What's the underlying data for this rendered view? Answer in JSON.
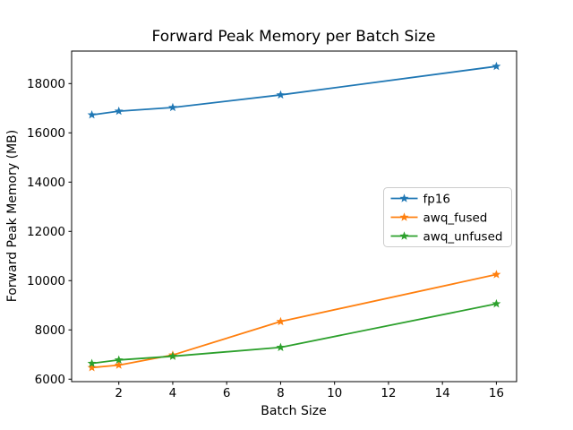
{
  "chart_data": {
    "type": "line",
    "title": "Forward Peak Memory per Batch Size",
    "xlabel": "Batch Size",
    "ylabel": "Forward Peak Memory (MB)",
    "x": [
      1,
      2,
      4,
      8,
      16
    ],
    "series": [
      {
        "name": "fp16",
        "color": "#1f77b4",
        "marker": "star",
        "values": [
          16730,
          16880,
          17030,
          17540,
          18700
        ]
      },
      {
        "name": "awq_fused",
        "color": "#ff7f0e",
        "marker": "star",
        "values": [
          6470,
          6570,
          6980,
          8340,
          10250
        ]
      },
      {
        "name": "awq_unfused",
        "color": "#2ca02c",
        "marker": "star",
        "values": [
          6640,
          6780,
          6930,
          7290,
          9060
        ]
      }
    ],
    "xticks": [
      2,
      4,
      6,
      8,
      10,
      12,
      14,
      16
    ],
    "yticks": [
      6000,
      8000,
      10000,
      12000,
      14000,
      16000,
      18000
    ],
    "xlim": [
      0.25,
      16.75
    ],
    "ylim": [
      5900,
      19320
    ],
    "grid": false,
    "legend_position": "center right"
  },
  "colors": {
    "background": "#ffffff",
    "text": "#000000",
    "spine": "#000000",
    "legend_border": "#cccccc",
    "legend_fill": "#ffffff"
  }
}
